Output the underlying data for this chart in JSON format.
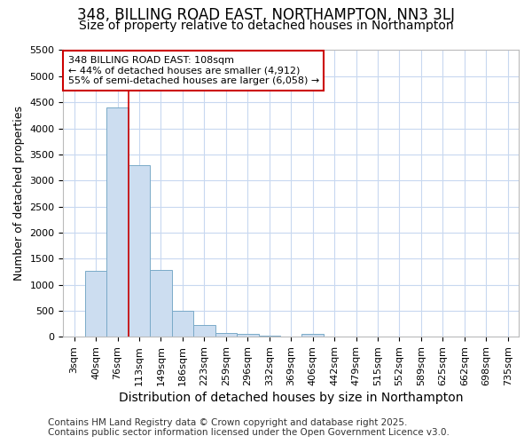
{
  "title": "348, BILLING ROAD EAST, NORTHAMPTON, NN3 3LJ",
  "subtitle": "Size of property relative to detached houses in Northampton",
  "xlabel": "Distribution of detached houses by size in Northampton",
  "ylabel": "Number of detached properties",
  "categories": [
    "3sqm",
    "40sqm",
    "76sqm",
    "113sqm",
    "149sqm",
    "186sqm",
    "223sqm",
    "259sqm",
    "296sqm",
    "332sqm",
    "369sqm",
    "406sqm",
    "442sqm",
    "479sqm",
    "515sqm",
    "552sqm",
    "589sqm",
    "625sqm",
    "662sqm",
    "698sqm",
    "735sqm"
  ],
  "values": [
    0,
    1270,
    4400,
    3300,
    1290,
    500,
    225,
    80,
    55,
    20,
    0,
    55,
    0,
    0,
    0,
    0,
    0,
    0,
    0,
    0,
    0
  ],
  "bar_color": "#ccddf0",
  "bar_edge_color": "#7aaac8",
  "vline_x_index": 3.0,
  "vline_color": "#cc0000",
  "annotation_text": "348 BILLING ROAD EAST: 108sqm\n← 44% of detached houses are smaller (4,912)\n55% of semi-detached houses are larger (6,058) →",
  "annotation_box_color": "#ffffff",
  "annotation_box_edge": "#cc0000",
  "ylim": [
    0,
    5500
  ],
  "yticks": [
    0,
    500,
    1000,
    1500,
    2000,
    2500,
    3000,
    3500,
    4000,
    4500,
    5000,
    5500
  ],
  "figure_bg": "#ffffff",
  "axes_bg": "#ffffff",
  "grid_color": "#c8d8f0",
  "footer_line1": "Contains HM Land Registry data © Crown copyright and database right 2025.",
  "footer_line2": "Contains public sector information licensed under the Open Government Licence v3.0.",
  "title_fontsize": 12,
  "subtitle_fontsize": 10,
  "xlabel_fontsize": 10,
  "ylabel_fontsize": 9,
  "tick_fontsize": 8,
  "annot_fontsize": 8,
  "footer_fontsize": 7.5
}
